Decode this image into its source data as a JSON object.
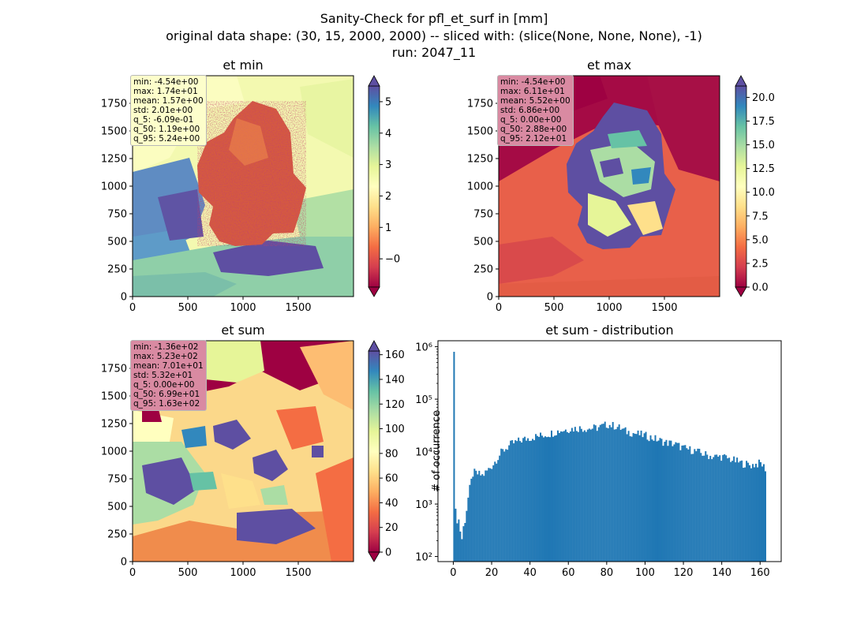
{
  "figure": {
    "title_line1": "Sanity-Check for pfl_et_surf in [mm]",
    "title_line2": "original data shape: (30, 15, 2000, 2000) -- sliced with: (slice(None, None, None), -1)",
    "title_line3": "run: 2047_11"
  },
  "panels": {
    "et_min": {
      "title": "et min",
      "xticks": [
        "0",
        "500",
        "1000",
        "1500"
      ],
      "yticks": [
        "0",
        "250",
        "500",
        "750",
        "1000",
        "1250",
        "1500",
        "1750"
      ],
      "colorbar": {
        "ticks": [
          0,
          1,
          2,
          3,
          4,
          5
        ],
        "tick_labels": [
          "0",
          "1",
          "2",
          "3",
          "4",
          "5"
        ],
        "extra_tick": "−0",
        "vmin": -0.9,
        "vmax": 5.5
      },
      "stats": [
        "min: -4.54e+00",
        "max: 1.74e+01",
        "mean: 1.57e+00",
        "std: 2.01e+00",
        "q_5: -6.09e-01",
        "q_50: 1.19e+00",
        "q_95: 5.24e+00"
      ],
      "stats_bg": "#fdfecb"
    },
    "et_max": {
      "title": "et max",
      "xticks": [
        "0",
        "500",
        "1000",
        "1500"
      ],
      "yticks": [
        "0",
        "250",
        "500",
        "750",
        "1000",
        "1250",
        "1500",
        "1750"
      ],
      "colorbar": {
        "tick_labels": [
          "0.0",
          "2.5",
          "5.0",
          "7.5",
          "10.0",
          "12.5",
          "15.0",
          "17.5",
          "20.0"
        ],
        "vmin": 0,
        "vmax": 21.2
      },
      "stats": [
        "min: -4.54e+00",
        "max: 6.11e+01",
        "mean: 5.52e+00",
        "std: 6.86e+00",
        "q_5: 0.00e+00",
        "q_50: 2.88e+00",
        "q_95: 2.12e+01"
      ],
      "stats_bg": "#d98aa2"
    },
    "et_sum": {
      "title": "et sum",
      "xticks": [
        "0",
        "500",
        "1000",
        "1500"
      ],
      "yticks": [
        "0",
        "250",
        "500",
        "750",
        "1000",
        "1250",
        "1500",
        "1750"
      ],
      "colorbar": {
        "tick_labels": [
          "0",
          "20",
          "40",
          "60",
          "80",
          "100",
          "120",
          "140",
          "160"
        ],
        "vmin": 0,
        "vmax": 163
      },
      "stats": [
        "min: -1.36e+02",
        "max: 5.23e+02",
        "mean: 7.01e+01",
        "std: 5.32e+01",
        "q_5: 0.00e+00",
        "q_50: 6.99e+01",
        "q_95: 1.63e+02"
      ],
      "stats_bg": "#d98aa2"
    },
    "distribution": {
      "title": "et sum - distribution",
      "ylabel": "# of occurrence"
    }
  },
  "chart_data": [
    {
      "type": "heatmap",
      "title": "et min",
      "xlim": [
        0,
        2000
      ],
      "ylim": [
        0,
        2000
      ],
      "colormap": "Spectral",
      "colorbar_range": [
        -0.9,
        5.5
      ]
    },
    {
      "type": "heatmap",
      "title": "et max",
      "xlim": [
        0,
        2000
      ],
      "ylim": [
        0,
        2000
      ],
      "colormap": "Spectral",
      "colorbar_range": [
        0,
        21.2
      ]
    },
    {
      "type": "heatmap",
      "title": "et sum",
      "xlim": [
        0,
        2000
      ],
      "ylim": [
        0,
        2000
      ],
      "colormap": "Spectral",
      "colorbar_range": [
        0,
        163
      ]
    },
    {
      "type": "bar",
      "title": "et sum - distribution",
      "ylabel": "# of occurrence",
      "yscale": "log",
      "xlim": [
        -8,
        171
      ],
      "ylim": [
        80,
        1300000
      ],
      "xticks": [
        0,
        20,
        40,
        60,
        80,
        100,
        120,
        140,
        160
      ],
      "yticks": [
        100,
        1000,
        10000,
        100000,
        1000000
      ],
      "ytick_labels": [
        "10²",
        "10³",
        "10⁴",
        "10⁵",
        "10⁶"
      ],
      "color": "#1f77b4",
      "bin_width": 0.82,
      "hist": {
        "x": [
          0,
          1,
          2,
          3,
          4,
          5,
          6,
          7,
          8,
          10,
          15,
          20,
          25,
          30,
          35,
          40,
          45,
          50,
          55,
          60,
          65,
          70,
          75,
          80,
          85,
          90,
          95,
          100,
          105,
          110,
          115,
          120,
          125,
          130,
          135,
          140,
          145,
          150,
          155,
          160,
          163
        ],
        "y": [
          800000,
          180,
          700,
          350,
          200,
          400,
          450,
          1100,
          1800,
          4000,
          3500,
          5500,
          10000,
          14000,
          16500,
          18500,
          20000,
          22000,
          25000,
          27000,
          28000,
          27500,
          28500,
          33000,
          30000,
          24000,
          22000,
          20000,
          17500,
          15000,
          14000,
          11500,
          10500,
          9000,
          8000,
          8000,
          7000,
          6000,
          5500,
          6000,
          4500
        ]
      }
    }
  ]
}
